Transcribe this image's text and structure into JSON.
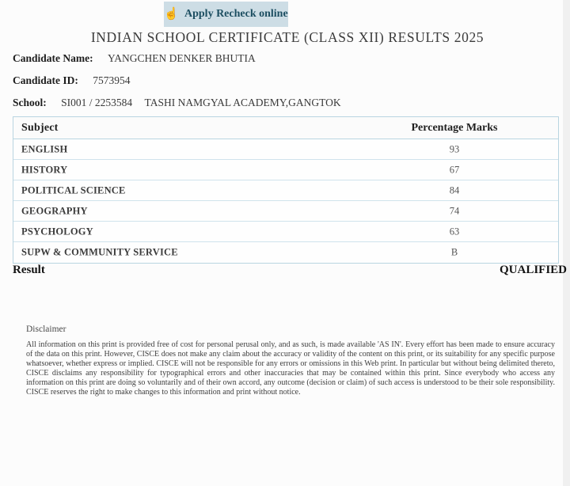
{
  "recheck_button": {
    "label": "Apply Recheck online",
    "icon": "pointing-hand-icon",
    "icon_glyph": "☝"
  },
  "header": {
    "title": "INDIAN SCHOOL CERTIFICATE (CLASS XII) RESULTS 2025"
  },
  "candidate": {
    "name_label": "Candidate Name:",
    "name_value": "YANGCHEN DENKER BHUTIA",
    "id_label": "Candidate ID:",
    "id_value": "7573954",
    "school_label": "School:",
    "school_code": "SI001 / 2253584",
    "school_name": "TASHI NAMGYAL ACADEMY,GANGTOK"
  },
  "results_table": {
    "headers": [
      "Subject",
      "Percentage Marks"
    ],
    "rows": [
      {
        "subject": "ENGLISH",
        "marks": "93"
      },
      {
        "subject": "HISTORY",
        "marks": "67"
      },
      {
        "subject": "POLITICAL SCIENCE",
        "marks": "84"
      },
      {
        "subject": "GEOGRAPHY",
        "marks": "74"
      },
      {
        "subject": "PSYCHOLOGY",
        "marks": "63"
      },
      {
        "subject": "SUPW & COMMUNITY SERVICE",
        "marks": "B"
      }
    ]
  },
  "result": {
    "label": "Result",
    "value": "QUALIFIED"
  },
  "disclaimer": {
    "heading": "Disclaimer",
    "body": "All information on this print is provided free of cost for personal perusal only, and as such, is made available 'AS IN'. Every effort has been made to ensure accuracy of the data on this print. However, CISCE does not make any claim about the accuracy or validity of the content on this print, or its suitability for any specific purpose whatsoever, whether express or implied. CISCE will not be responsible for any errors or omissions in this Web print. In particular but without being delimited thereto, CISCE disclaims any responsibility for typographical errors and other inaccuracies that may be contained within this print. Since everybody who access any information on this print are doing so voluntarily and of their own accord, any outcome (decision or claim) of such access is understood to be their sole responsibility. CISCE reserves the right to make changes to this information and print without notice."
  },
  "colors": {
    "button_background": "#cddde5",
    "button_text": "#1c4e61",
    "table_border": "#b9d5e1",
    "row_divider": "#cfe3ec",
    "page_background": "#fcfcfc",
    "right_gutter": "#f0f0f0"
  }
}
